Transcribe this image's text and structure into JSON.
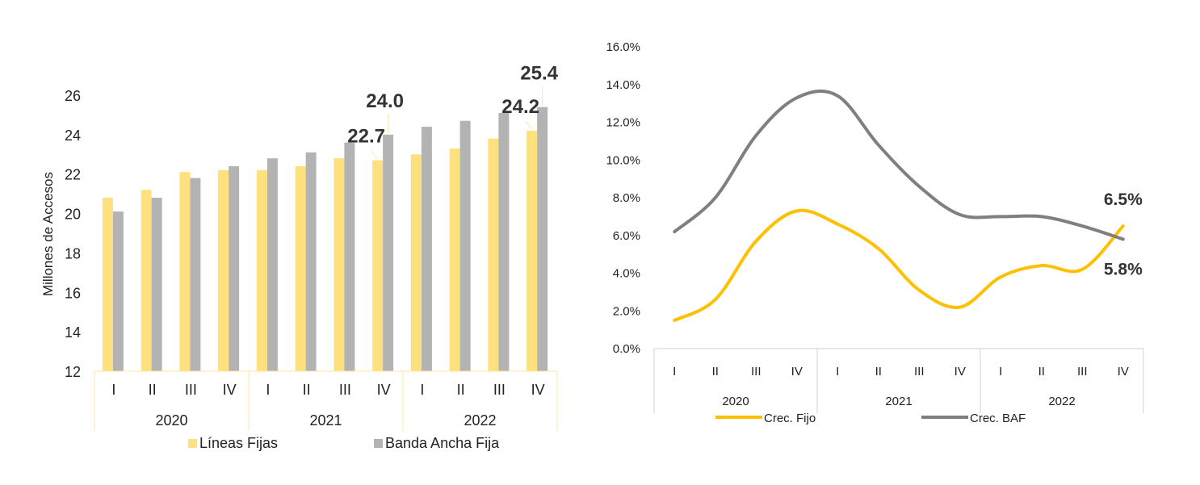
{
  "chart_data": [
    {
      "type": "bar",
      "ylabel": "Millones de Accesos",
      "ylim": [
        12,
        26
      ],
      "yticks": [
        12,
        14,
        16,
        18,
        20,
        22,
        24,
        26
      ],
      "categories": [
        "I",
        "II",
        "III",
        "IV",
        "I",
        "II",
        "III",
        "IV",
        "I",
        "II",
        "III",
        "IV"
      ],
      "groups": [
        {
          "label": "2020",
          "count": 4
        },
        {
          "label": "2021",
          "count": 4
        },
        {
          "label": "2022",
          "count": 4
        }
      ],
      "series": [
        {
          "name": "Líneas Fijas",
          "color": "#FFE07F",
          "values": [
            20.8,
            21.2,
            22.1,
            22.2,
            22.2,
            22.4,
            22.8,
            22.7,
            23.0,
            23.3,
            23.8,
            24.2
          ]
        },
        {
          "name": "Banda Ancha Fija",
          "color": "#B3B3B3",
          "values": [
            20.1,
            20.8,
            21.8,
            22.4,
            22.8,
            23.1,
            23.6,
            24.0,
            24.4,
            24.7,
            25.1,
            25.4
          ]
        }
      ],
      "data_labels": [
        {
          "series": 0,
          "index": 7,
          "text": "22.7"
        },
        {
          "series": 1,
          "index": 7,
          "text": "24.0"
        },
        {
          "series": 0,
          "index": 11,
          "text": "24.2"
        },
        {
          "series": 1,
          "index": 11,
          "text": "25.4"
        }
      ],
      "legend_position": "bottom"
    },
    {
      "type": "line",
      "ylim": [
        0,
        16
      ],
      "yticks": [
        "0.0%",
        "2.0%",
        "4.0%",
        "6.0%",
        "8.0%",
        "10.0%",
        "12.0%",
        "14.0%",
        "16.0%"
      ],
      "categories": [
        "I",
        "II",
        "III",
        "IV",
        "I",
        "II",
        "III",
        "IV",
        "I",
        "II",
        "III",
        "IV"
      ],
      "groups": [
        {
          "label": "2020",
          "count": 4
        },
        {
          "label": "2021",
          "count": 4
        },
        {
          "label": "2022",
          "count": 4
        }
      ],
      "series": [
        {
          "name": "Crec. Fijo",
          "color": "#FFC000",
          "values": [
            1.5,
            2.6,
            5.7,
            7.3,
            6.6,
            5.3,
            3.1,
            2.2,
            3.8,
            4.4,
            4.2,
            6.5
          ]
        },
        {
          "name": "Crec. BAF",
          "color": "#7F7F7F",
          "values": [
            6.2,
            8.0,
            11.3,
            13.3,
            13.4,
            10.8,
            8.6,
            7.1,
            7.0,
            7.0,
            6.5,
            5.8
          ]
        }
      ],
      "data_labels": [
        {
          "series": 0,
          "index": 11,
          "text": "6.5%"
        },
        {
          "series": 1,
          "index": 11,
          "text": "5.8%"
        }
      ],
      "legend_position": "bottom"
    }
  ]
}
